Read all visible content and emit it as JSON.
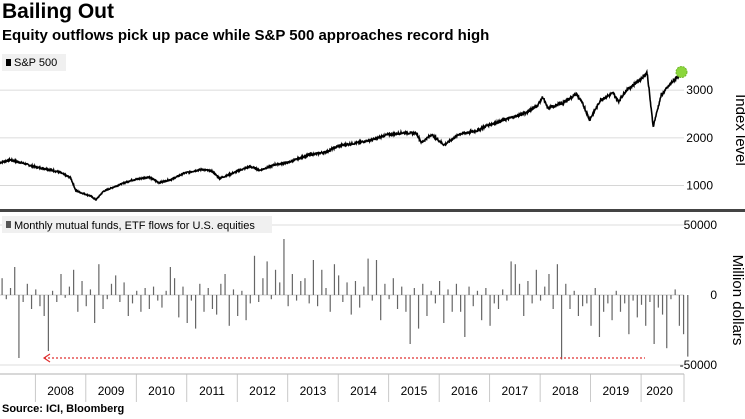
{
  "title": "Bailing Out",
  "subtitle": "Equity outflows pick up pace while S&P 500 approaches record high",
  "source": "Source: ICI, Bloomberg",
  "colors": {
    "line": "#000000",
    "bars": "#666666",
    "grid": "#cccccc",
    "divider": "#444444",
    "arrow": "#e03030",
    "marker": "#8bd63c",
    "panel_bg": "#ffffff",
    "legend_bg": "#f0f0f0"
  },
  "chart_data": [
    {
      "type": "line",
      "legend": "S&P 500",
      "ylabel": "Index level",
      "ylim": [
        550,
        3800
      ],
      "yticks": [
        1000,
        2000,
        3000
      ],
      "x_range": [
        2007.3,
        2020.85
      ],
      "anchors": [
        [
          2007.3,
          1480
        ],
        [
          2007.5,
          1540
        ],
        [
          2007.75,
          1470
        ],
        [
          2008.0,
          1390
        ],
        [
          2008.3,
          1330
        ],
        [
          2008.5,
          1270
        ],
        [
          2008.7,
          1160
        ],
        [
          2008.8,
          900
        ],
        [
          2008.9,
          850
        ],
        [
          2009.1,
          780
        ],
        [
          2009.2,
          700
        ],
        [
          2009.35,
          880
        ],
        [
          2009.6,
          990
        ],
        [
          2009.9,
          1110
        ],
        [
          2010.25,
          1180
        ],
        [
          2010.45,
          1060
        ],
        [
          2010.7,
          1130
        ],
        [
          2010.95,
          1260
        ],
        [
          2011.3,
          1340
        ],
        [
          2011.5,
          1300
        ],
        [
          2011.65,
          1150
        ],
        [
          2011.85,
          1230
        ],
        [
          2012.0,
          1300
        ],
        [
          2012.25,
          1400
        ],
        [
          2012.45,
          1320
        ],
        [
          2012.75,
          1440
        ],
        [
          2013.0,
          1480
        ],
        [
          2013.4,
          1640
        ],
        [
          2013.75,
          1700
        ],
        [
          2014.0,
          1830
        ],
        [
          2014.4,
          1900
        ],
        [
          2014.75,
          1980
        ],
        [
          2014.95,
          2060
        ],
        [
          2015.3,
          2110
        ],
        [
          2015.55,
          2090
        ],
        [
          2015.65,
          1900
        ],
        [
          2015.85,
          2070
        ],
        [
          2016.1,
          1850
        ],
        [
          2016.4,
          2080
        ],
        [
          2016.75,
          2150
        ],
        [
          2016.95,
          2260
        ],
        [
          2017.3,
          2380
        ],
        [
          2017.7,
          2520
        ],
        [
          2017.95,
          2680
        ],
        [
          2018.05,
          2860
        ],
        [
          2018.15,
          2620
        ],
        [
          2018.45,
          2730
        ],
        [
          2018.72,
          2920
        ],
        [
          2018.85,
          2700
        ],
        [
          2018.98,
          2380
        ],
        [
          2019.2,
          2800
        ],
        [
          2019.45,
          2940
        ],
        [
          2019.55,
          2760
        ],
        [
          2019.7,
          2990
        ],
        [
          2020.0,
          3240
        ],
        [
          2020.12,
          3370
        ],
        [
          2020.2,
          2600
        ],
        [
          2020.24,
          2240
        ],
        [
          2020.4,
          2900
        ],
        [
          2020.6,
          3150
        ],
        [
          2020.8,
          3380
        ]
      ],
      "highlight_point": [
        2020.8,
        3380
      ]
    },
    {
      "type": "bar",
      "legend": "Monthly mutual funds, ETF flows for U.S. equities",
      "ylabel": "Million dollars",
      "ylim": [
        -50000,
        50000
      ],
      "yticks": [
        50000,
        0,
        -50000
      ],
      "x_start": 2007.3,
      "values": [
        12000,
        -3000,
        5000,
        20000,
        -45000,
        -5000,
        8000,
        -10000,
        4000,
        -8000,
        -15000,
        -40000,
        3000,
        -5000,
        15000,
        -2000,
        6000,
        18000,
        -12000,
        10000,
        -8000,
        4000,
        -20000,
        22000,
        -10000,
        -3000,
        8000,
        14000,
        -5000,
        9000,
        -15000,
        -6000,
        3000,
        -12000,
        5000,
        -10000,
        6000,
        -4000,
        -9000,
        3000,
        20000,
        12000,
        -16000,
        6000,
        -20000,
        -4000,
        -24000,
        8000,
        -12000,
        5000,
        -10000,
        -14000,
        8000,
        15000,
        -22000,
        4000,
        -15000,
        3000,
        -18000,
        -6000,
        28000,
        -5000,
        12000,
        24000,
        -3000,
        18000,
        9000,
        40000,
        -8000,
        15000,
        -4000,
        10000,
        12000,
        -6000,
        25000,
        -8000,
        18000,
        5000,
        -12000,
        22000,
        14000,
        -5000,
        9000,
        -14000,
        10000,
        -9000,
        6000,
        26000,
        -4000,
        25000,
        -18000,
        8000,
        -3000,
        12000,
        -10000,
        6000,
        -12000,
        -35000,
        5000,
        -24000,
        8000,
        -15000,
        3000,
        -6000,
        10000,
        -20000,
        4000,
        -12000,
        8000,
        -12000,
        -30000,
        6000,
        -8000,
        3000,
        -18000,
        5000,
        -22000,
        -6000,
        -10000,
        4000,
        -4000,
        24000,
        22000,
        8000,
        -15000,
        10000,
        -6000,
        18000,
        -4000,
        6000,
        15000,
        -10000,
        22000,
        -46000,
        8000,
        -10000,
        3000,
        -15000,
        -8000,
        -6000,
        -22000,
        5000,
        -30000,
        -12000,
        -6000,
        -18000,
        3000,
        -12000,
        -6000,
        -28000,
        -4000,
        -16000,
        -7000,
        -22000,
        -5000,
        -35000,
        -9000,
        -14000,
        -38000,
        -3000,
        4000,
        -22000,
        -28000,
        -44000
      ]
    }
  ],
  "x_axis": {
    "labels": [
      "2008",
      "2009",
      "2010",
      "2011",
      "2012",
      "2013",
      "2014",
      "2015",
      "2016",
      "2017",
      "2018",
      "2019",
      "2020"
    ]
  }
}
